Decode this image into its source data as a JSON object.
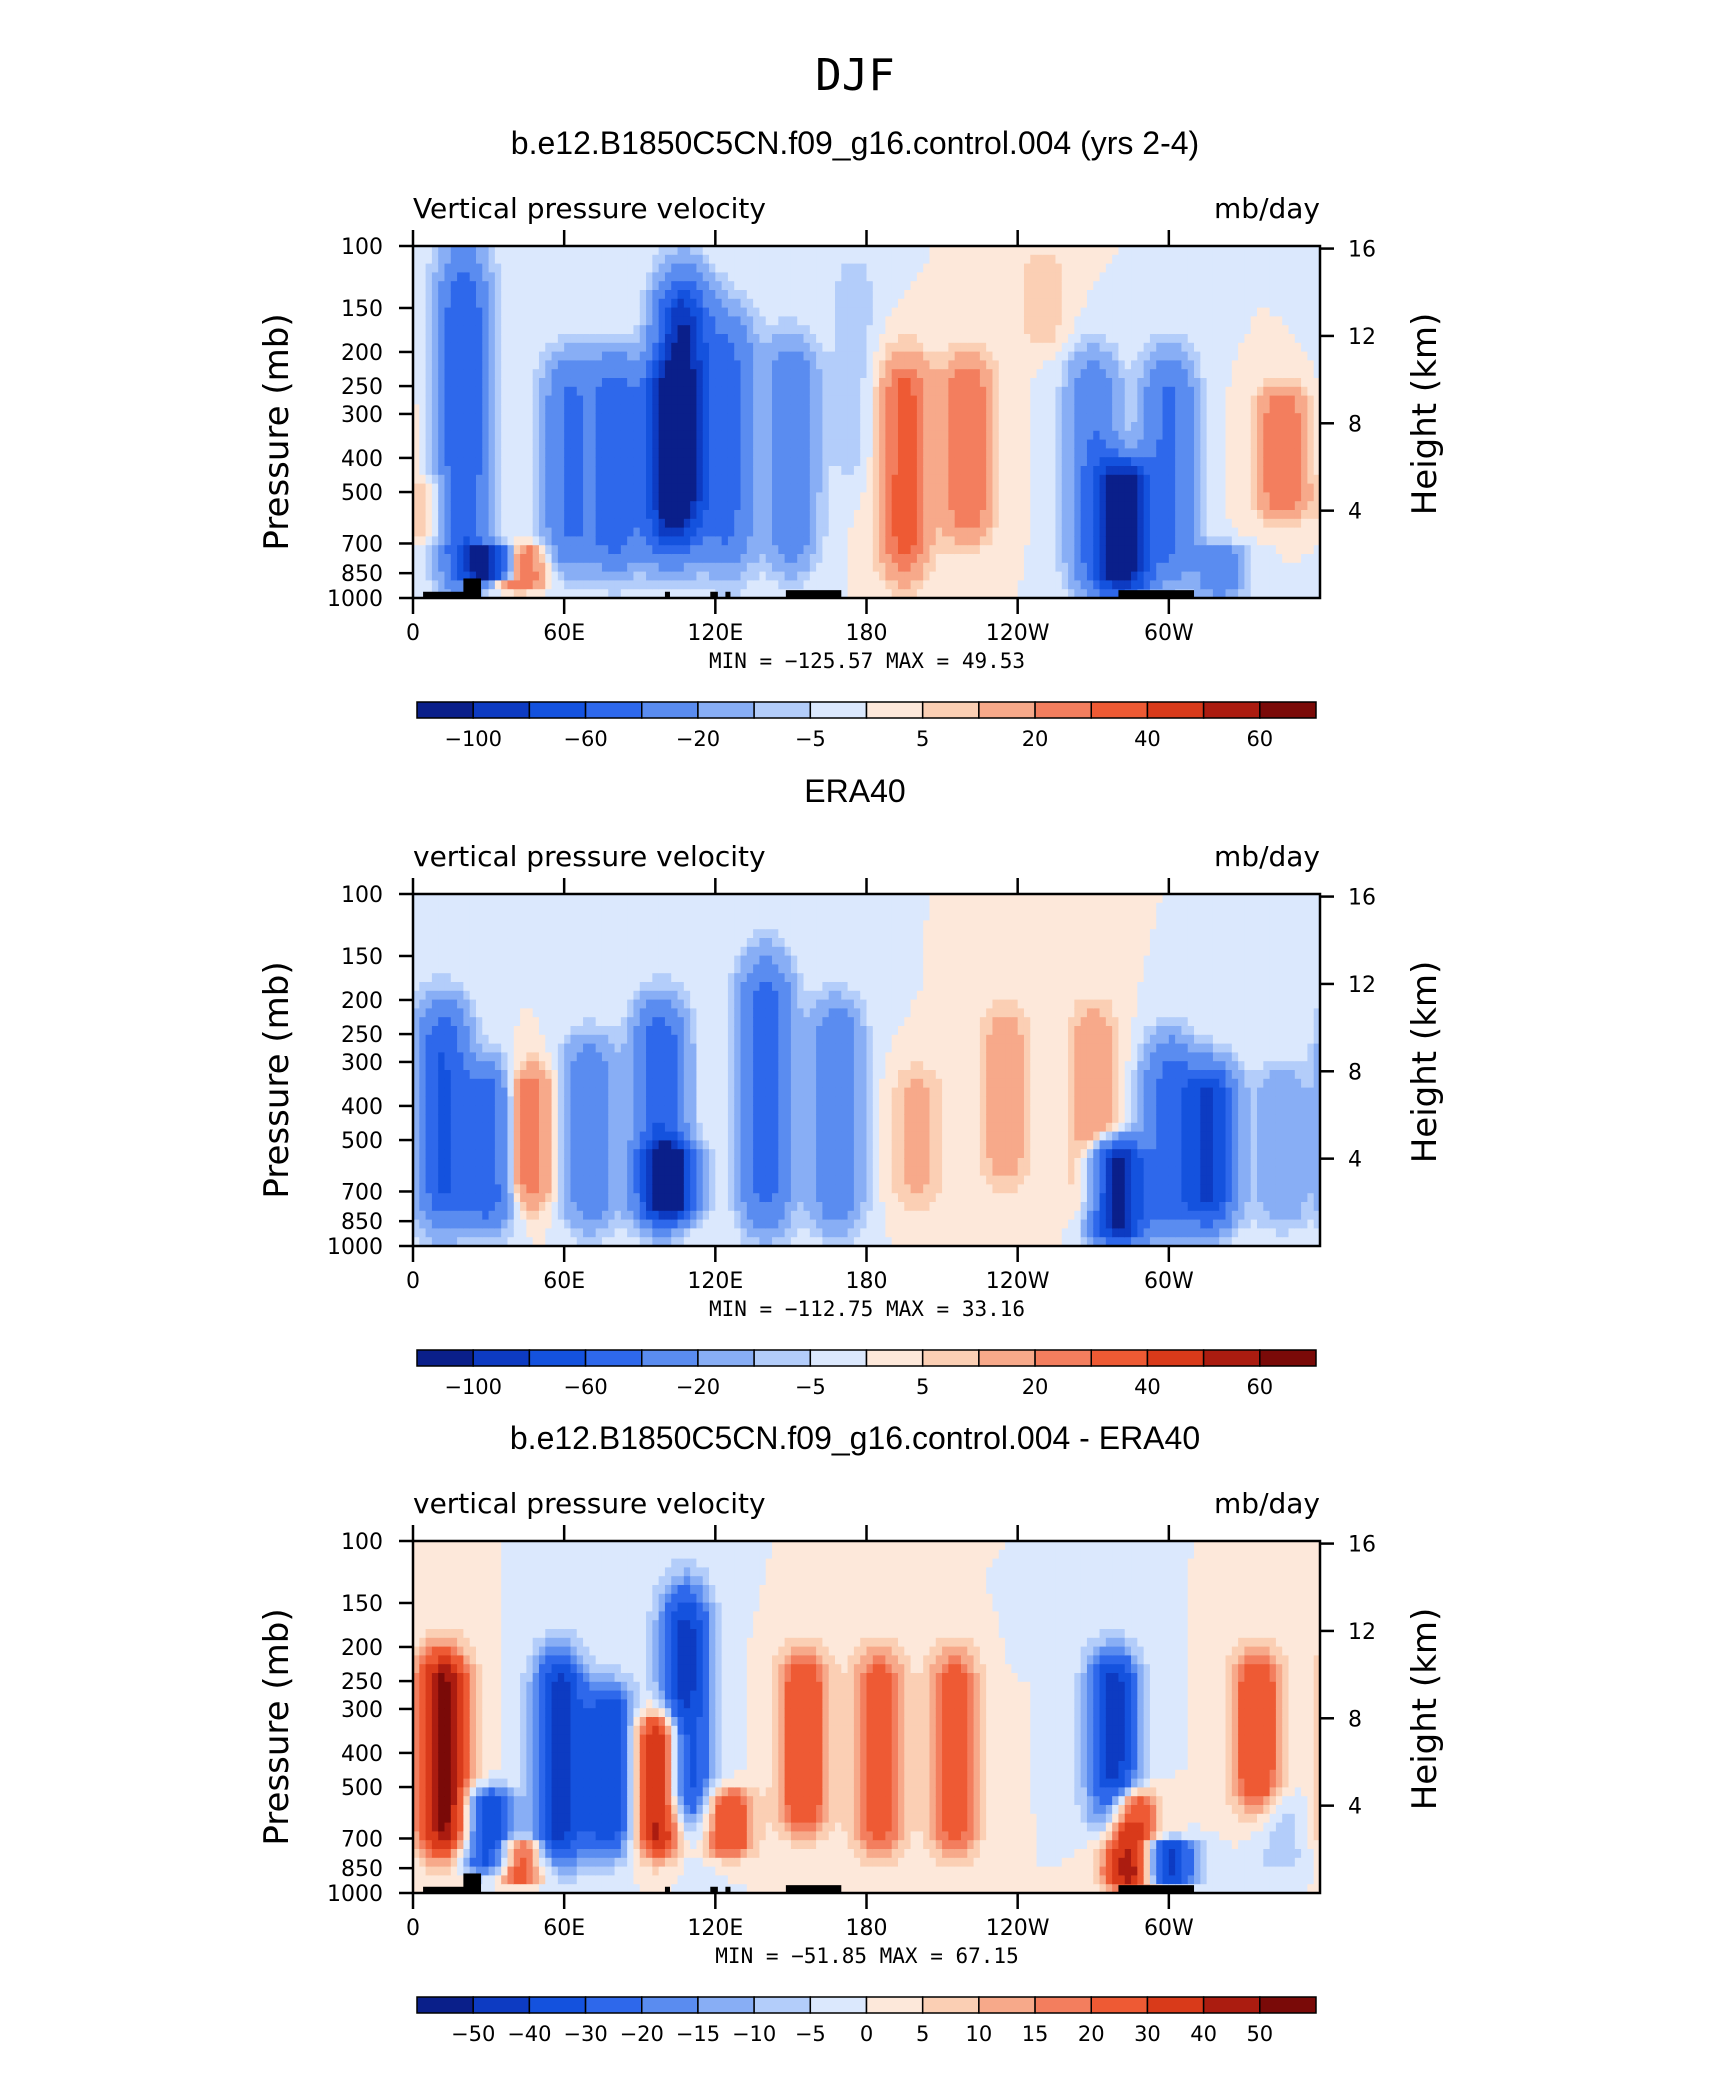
{
  "figure": {
    "title": "DJF"
  },
  "chart_data": [
    {
      "type": "heatmap",
      "title": "b.e12.B1850C5CN.f09_g16.control.004 (yrs 2-4)",
      "left_label": "Vertical pressure velocity",
      "right_label": "mb/day",
      "xlabel": "",
      "ylabel": "Pressure (mb)",
      "y2label": "Height (km)",
      "x_ticks": [
        "0",
        "60E",
        "120E",
        "180",
        "120W",
        "60W"
      ],
      "x_tick_values": [
        0,
        60,
        120,
        180,
        240,
        300
      ],
      "xlim": [
        0,
        360
      ],
      "y_ticks": [
        "100",
        "150",
        "200",
        "250",
        "300",
        "400",
        "500",
        "700",
        "850",
        "1000"
      ],
      "y_tick_values": [
        100,
        150,
        200,
        250,
        300,
        400,
        500,
        700,
        850,
        1000
      ],
      "ylim": [
        1000,
        100
      ],
      "y_scale": "log",
      "y2_ticks": [
        "16",
        "12",
        "8",
        "4"
      ],
      "y2_tick_values": [
        16,
        12,
        8,
        4
      ],
      "min_max_text": "MIN = −125.57   MAX =   49.53",
      "min": -125.57,
      "max": 49.53,
      "colorbar_labels": [
        "−100",
        "−60",
        "−20",
        "−5",
        "5",
        "20",
        "40",
        "60"
      ],
      "colorbar_levels": [
        -120,
        -100,
        -80,
        -60,
        -40,
        -20,
        -10,
        -5,
        0,
        5,
        10,
        20,
        30,
        40,
        50,
        60
      ],
      "terrain": true,
      "features": [
        {
          "lon": 10,
          "p0": 450,
          "p1": 700,
          "v": 15
        },
        {
          "lon": 20,
          "p0": 100,
          "p1": 1000,
          "v": -60
        },
        {
          "lon": 30,
          "p0": 700,
          "p1": 900,
          "v": -100
        },
        {
          "lon": 42,
          "p0": 700,
          "p1": 950,
          "v": 40
        },
        {
          "lon": 62,
          "p0": 200,
          "p1": 850,
          "v": -40
        },
        {
          "lon": 80,
          "p0": 200,
          "p1": 850,
          "v": -50
        },
        {
          "lon": 100,
          "p0": 200,
          "p1": 800,
          "v": -60
        },
        {
          "lon": 107,
          "p0": 120,
          "p1": 700,
          "v": -100
        },
        {
          "lon": 125,
          "p0": 150,
          "p1": 850,
          "v": -45
        },
        {
          "lon": 150,
          "p0": 180,
          "p1": 850,
          "v": -35
        },
        {
          "lon": 175,
          "p0": 100,
          "p1": 500,
          "v": -8
        },
        {
          "lon": 195,
          "p0": 200,
          "p1": 900,
          "v": 35
        },
        {
          "lon": 220,
          "p0": 200,
          "p1": 700,
          "v": 30
        },
        {
          "lon": 250,
          "p0": 100,
          "p1": 200,
          "v": 8
        },
        {
          "lon": 270,
          "p0": 200,
          "p1": 1000,
          "v": -40
        },
        {
          "lon": 282,
          "p0": 400,
          "p1": 1000,
          "v": -120
        },
        {
          "lon": 300,
          "p0": 200,
          "p1": 900,
          "v": -45
        },
        {
          "lon": 320,
          "p0": 700,
          "p1": 1000,
          "v": -30
        },
        {
          "lon": 345,
          "p0": 250,
          "p1": 600,
          "v": 30
        }
      ]
    },
    {
      "type": "heatmap",
      "title": "ERA40",
      "left_label": "vertical pressure velocity",
      "right_label": "mb/day",
      "xlabel": "",
      "ylabel": "Pressure (mb)",
      "y2label": "Height (km)",
      "x_ticks": [
        "0",
        "60E",
        "120E",
        "180",
        "120W",
        "60W"
      ],
      "x_tick_values": [
        0,
        60,
        120,
        180,
        240,
        300
      ],
      "xlim": [
        0,
        360
      ],
      "y_ticks": [
        "100",
        "150",
        "200",
        "250",
        "300",
        "400",
        "500",
        "700",
        "850",
        "1000"
      ],
      "y_tick_values": [
        100,
        150,
        200,
        250,
        300,
        400,
        500,
        700,
        850,
        1000
      ],
      "ylim": [
        1000,
        100
      ],
      "y_scale": "log",
      "y2_ticks": [
        "16",
        "12",
        "8",
        "4"
      ],
      "y2_tick_values": [
        16,
        12,
        8,
        4
      ],
      "min_max_text": "MIN = −112.75   MAX =   33.16",
      "min": -112.75,
      "max": 33.16,
      "colorbar_labels": [
        "−100",
        "−60",
        "−20",
        "−5",
        "5",
        "20",
        "40",
        "60"
      ],
      "colorbar_levels": [
        -120,
        -100,
        -80,
        -60,
        -40,
        -20,
        -10,
        -5,
        0,
        5,
        10,
        20,
        30,
        40,
        50,
        60
      ],
      "terrain": false,
      "features": [
        {
          "lon": 12,
          "p0": 200,
          "p1": 900,
          "v": -60
        },
        {
          "lon": 30,
          "p0": 300,
          "p1": 900,
          "v": -55
        },
        {
          "lon": 45,
          "p0": 300,
          "p1": 800,
          "v": 30
        },
        {
          "lon": 70,
          "p0": 250,
          "p1": 900,
          "v": -35
        },
        {
          "lon": 98,
          "p0": 200,
          "p1": 900,
          "v": -60
        },
        {
          "lon": 102,
          "p0": 500,
          "p1": 850,
          "v": -95
        },
        {
          "lon": 140,
          "p0": 150,
          "p1": 900,
          "v": -55
        },
        {
          "lon": 168,
          "p0": 200,
          "p1": 900,
          "v": -40
        },
        {
          "lon": 200,
          "p0": 300,
          "p1": 800,
          "v": 12
        },
        {
          "lon": 235,
          "p0": 200,
          "p1": 700,
          "v": 15
        },
        {
          "lon": 280,
          "p0": 500,
          "p1": 1000,
          "v": -110
        },
        {
          "lon": 270,
          "p0": 200,
          "p1": 850,
          "v": 18
        },
        {
          "lon": 300,
          "p0": 250,
          "p1": 950,
          "v": -45
        },
        {
          "lon": 316,
          "p0": 300,
          "p1": 900,
          "v": -80
        },
        {
          "lon": 345,
          "p0": 300,
          "p1": 900,
          "v": -20
        }
      ]
    },
    {
      "type": "heatmap",
      "title": "b.e12.B1850C5CN.f09_g16.control.004 - ERA40",
      "left_label": "vertical pressure velocity",
      "right_label": "mb/day",
      "xlabel": "",
      "ylabel": "Pressure (mb)",
      "y2label": "Height (km)",
      "x_ticks": [
        "0",
        "60E",
        "120E",
        "180",
        "120W",
        "60W"
      ],
      "x_tick_values": [
        0,
        60,
        120,
        180,
        240,
        300
      ],
      "xlim": [
        0,
        360
      ],
      "y_ticks": [
        "100",
        "150",
        "200",
        "250",
        "300",
        "400",
        "500",
        "700",
        "850",
        "1000"
      ],
      "y_tick_values": [
        100,
        150,
        200,
        250,
        300,
        400,
        500,
        700,
        850,
        1000
      ],
      "ylim": [
        1000,
        100
      ],
      "y_scale": "log",
      "y2_ticks": [
        "16",
        "12",
        "8",
        "4"
      ],
      "y2_tick_values": [
        16,
        12,
        8,
        4
      ],
      "min_max_text": "MIN = −51.85   MAX =   67.15",
      "min": -51.85,
      "max": 67.15,
      "colorbar_labels": [
        "−50",
        "−40",
        "−30",
        "−20",
        "−15",
        "−10",
        "−5",
        "0",
        "5",
        "10",
        "15",
        "20",
        "30",
        "40",
        "50"
      ],
      "colorbar_levels": [
        -60,
        -50,
        -40,
        -30,
        -20,
        -15,
        -10,
        -5,
        0,
        5,
        10,
        15,
        20,
        30,
        40,
        50
      ],
      "terrain": true,
      "features": [
        {
          "lon": 12,
          "p0": 200,
          "p1": 800,
          "v": 55
        },
        {
          "lon": 30,
          "p0": 500,
          "p1": 900,
          "v": -40
        },
        {
          "lon": 42,
          "p0": 700,
          "p1": 950,
          "v": 30
        },
        {
          "lon": 58,
          "p0": 200,
          "p1": 850,
          "v": -45
        },
        {
          "lon": 78,
          "p0": 250,
          "p1": 800,
          "v": -40
        },
        {
          "lon": 98,
          "p0": 300,
          "p1": 800,
          "v": 50
        },
        {
          "lon": 108,
          "p0": 130,
          "p1": 700,
          "v": -45
        },
        {
          "lon": 125,
          "p0": 500,
          "p1": 800,
          "v": 30
        },
        {
          "lon": 155,
          "p0": 200,
          "p1": 700,
          "v": 30
        },
        {
          "lon": 185,
          "p0": 200,
          "p1": 800,
          "v": 28
        },
        {
          "lon": 215,
          "p0": 200,
          "p1": 800,
          "v": 28
        },
        {
          "lon": 252,
          "p0": 130,
          "p1": 220,
          "v": -5
        },
        {
          "lon": 278,
          "p0": 200,
          "p1": 700,
          "v": -45
        },
        {
          "lon": 284,
          "p0": 500,
          "p1": 1000,
          "v": 50
        },
        {
          "lon": 300,
          "p0": 700,
          "p1": 950,
          "v": -45
        },
        {
          "lon": 335,
          "p0": 200,
          "p1": 600,
          "v": 30
        },
        {
          "lon": 345,
          "p0": 500,
          "p1": 900,
          "v": -8
        }
      ]
    }
  ],
  "style": {
    "palette": [
      "#0a1f8a",
      "#0d3bc2",
      "#1452de",
      "#2e68eb",
      "#5a8cf0",
      "#88aef5",
      "#b3cdfa",
      "#dbe8fd",
      "#fde8da",
      "#fbcfb4",
      "#f7a98a",
      "#f37e5e",
      "#ee5a34",
      "#d93a1a",
      "#ab1c10",
      "#7a0a08"
    ]
  }
}
